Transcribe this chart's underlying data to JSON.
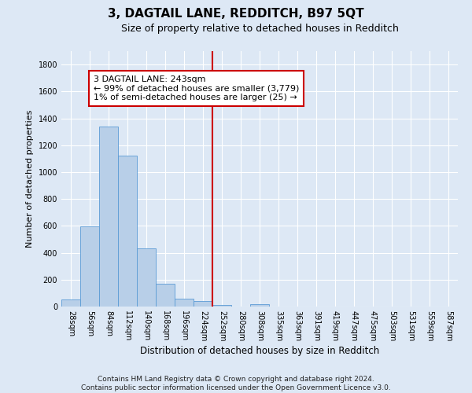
{
  "title": "3, DAGTAIL LANE, REDDITCH, B97 5QT",
  "subtitle": "Size of property relative to detached houses in Redditch",
  "xlabel": "Distribution of detached houses by size in Redditch",
  "ylabel": "Number of detached properties",
  "bin_labels": [
    "28sqm",
    "56sqm",
    "84sqm",
    "112sqm",
    "140sqm",
    "168sqm",
    "196sqm",
    "224sqm",
    "252sqm",
    "280sqm",
    "308sqm",
    "335sqm",
    "363sqm",
    "391sqm",
    "419sqm",
    "447sqm",
    "475sqm",
    "503sqm",
    "531sqm",
    "559sqm",
    "587sqm"
  ],
  "bar_values": [
    55,
    595,
    1340,
    1120,
    430,
    170,
    60,
    40,
    10,
    0,
    20,
    0,
    0,
    0,
    0,
    0,
    0,
    0,
    0,
    0,
    0
  ],
  "bar_color": "#b8cfe8",
  "bar_edge_color": "#5b9bd5",
  "plot_bg_color": "#dde8f5",
  "fig_bg_color": "#dde8f5",
  "grid_color": "#ffffff",
  "vline_color": "#cc0000",
  "vline_index": 8,
  "ylim": [
    0,
    1900
  ],
  "yticks": [
    0,
    200,
    400,
    600,
    800,
    1000,
    1200,
    1400,
    1600,
    1800
  ],
  "annotation_text": "3 DAGTAIL LANE: 243sqm\n← 99% of detached houses are smaller (3,779)\n1% of semi-detached houses are larger (25) →",
  "annotation_box_color": "#cc0000",
  "footer_text": "Contains HM Land Registry data © Crown copyright and database right 2024.\nContains public sector information licensed under the Open Government Licence v3.0.",
  "title_fontsize": 11,
  "subtitle_fontsize": 9,
  "ylabel_fontsize": 8,
  "xlabel_fontsize": 8.5,
  "tick_fontsize": 7,
  "annotation_fontsize": 8,
  "footer_fontsize": 6.5
}
